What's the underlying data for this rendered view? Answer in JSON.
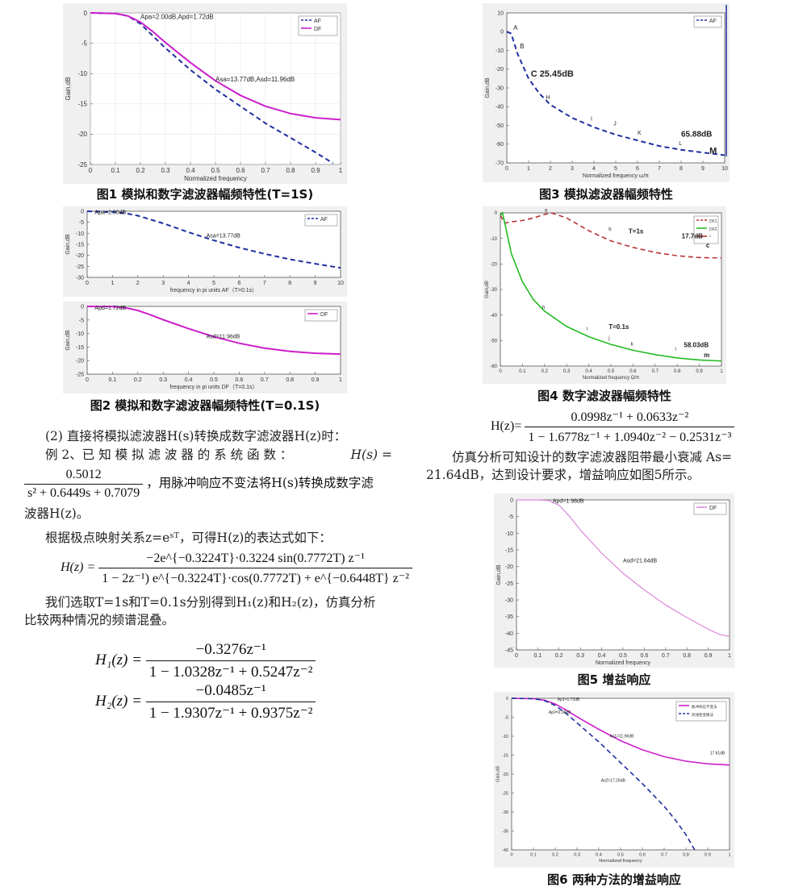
{
  "colors": {
    "af": "#1f2fa0",
    "df": "#cc1fcc",
    "plot_bg": "#f0f0f0",
    "frame": "#ffffff",
    "red": "#b83232",
    "green": "#22bb22",
    "light_pink": "#dd88dd"
  },
  "figures": {
    "fig1": {
      "caption": "图1 模拟和数字滤波器幅频特性(T=1S)",
      "chart_data": {
        "type": "line",
        "xlabel": "Normalized frequency",
        "ylabel": "Gain,dB",
        "xlim": [
          0,
          1
        ],
        "ylim": [
          -25,
          0
        ],
        "x_ticks": [
          "0",
          "0.1",
          "0.2",
          "0.3",
          "0.4",
          "0.5",
          "0.6",
          "0.7",
          "0.8",
          "0.9",
          "1"
        ],
        "y_ticks": [
          "0",
          "-5",
          "-10",
          "-15",
          "-20",
          "-25"
        ],
        "legend": [
          "AF",
          "DF"
        ],
        "legend_position": "top-right",
        "annotations": [
          "Apa=2.00dB,Apd=1.72dB",
          "Asa=13.77dB,Asd=11.96dB"
        ],
        "series": [
          {
            "name": "AF",
            "style": "dashed",
            "x": [
              0,
              0.1,
              0.15,
              0.2,
              0.25,
              0.3,
              0.4,
              0.5,
              0.6,
              0.7,
              0.8,
              0.9,
              0.97
            ],
            "y": [
              0,
              -0.1,
              -0.5,
              -1.8,
              -3.8,
              -5.8,
              -9.4,
              -12.6,
              -15.4,
              -18.2,
              -20.6,
              -23,
              -24.8
            ]
          },
          {
            "name": "DF",
            "style": "solid",
            "x": [
              0,
              0.1,
              0.15,
              0.2,
              0.25,
              0.3,
              0.4,
              0.5,
              0.6,
              0.7,
              0.8,
              0.9,
              1
            ],
            "y": [
              0,
              -0.1,
              -0.5,
              -1.5,
              -3.1,
              -4.9,
              -8.2,
              -11.2,
              -13.6,
              -15.4,
              -16.6,
              -17.3,
              -17.6
            ]
          }
        ]
      }
    },
    "fig2": {
      "caption": "图2 模拟和数字滤波器幅频特性(T=0.1S)",
      "top": {
        "chart_data": {
          "type": "line",
          "xlabel": "frequency in pi units        AF（T=0.1s）",
          "ylabel": "Gain,dB",
          "xlim": [
            0,
            10
          ],
          "ylim": [
            -30,
            0
          ],
          "x_ticks": [
            "0",
            "1",
            "2",
            "3",
            "4",
            "5",
            "6",
            "7",
            "8",
            "9",
            "10"
          ],
          "y_ticks": [
            "0",
            "-5",
            "-10",
            "-15",
            "-20",
            "-25",
            "-30"
          ],
          "legend": [
            "AF"
          ],
          "legend_position": "top-right",
          "annotations": [
            "Apa=2.00dB",
            "Asa=13.77dB"
          ],
          "series": [
            {
              "name": "AF",
              "style": "dashed",
              "x": [
                0,
                1,
                1.5,
                2,
                3,
                4,
                5,
                6,
                7,
                8,
                9,
                10
              ],
              "y": [
                0,
                -0.3,
                -0.9,
                -2,
                -5.5,
                -9.5,
                -13.2,
                -16.5,
                -19.3,
                -21.8,
                -23.8,
                -25.7
              ]
            }
          ]
        }
      },
      "bottom": {
        "chart_data": {
          "type": "line",
          "xlabel": "frequency in pi units        DF（T=0.1s）",
          "ylabel": "Gain,dB",
          "xlim": [
            0,
            1
          ],
          "ylim": [
            -25,
            0
          ],
          "x_ticks": [
            "0",
            "0.1",
            "0.2",
            "0.3",
            "0.4",
            "0.5",
            "0.6",
            "0.7",
            "0.8",
            "0.9",
            "1"
          ],
          "y_ticks": [
            "0",
            "-5",
            "-10",
            "-15",
            "-20",
            "-25"
          ],
          "legend": [
            "DF"
          ],
          "legend_position": "top-right",
          "annotations": [
            "Apd=1.72dB",
            "Asd=11.96dB"
          ],
          "series": [
            {
              "name": "DF",
              "style": "solid",
              "x": [
                0,
                0.1,
                0.15,
                0.2,
                0.25,
                0.3,
                0.4,
                0.5,
                0.6,
                0.7,
                0.8,
                0.9,
                1
              ],
              "y": [
                0,
                -0.1,
                -0.5,
                -1.5,
                -3.1,
                -4.9,
                -8.2,
                -11.2,
                -13.6,
                -15.4,
                -16.6,
                -17.3,
                -17.6
              ]
            }
          ]
        }
      }
    },
    "fig3": {
      "caption": "图3 模拟滤波器幅频特性",
      "chart_data": {
        "type": "line",
        "xlabel": "Normalized frequency ω/π",
        "ylabel": "Gain,dB",
        "xlim": [
          0,
          10
        ],
        "ylim": [
          -70,
          10
        ],
        "x_ticks": [
          "0",
          "1",
          "2",
          "3",
          "4",
          "5",
          "6",
          "7",
          "8",
          "9",
          "10"
        ],
        "y_ticks": [
          "10",
          "0",
          "-10",
          "-20",
          "-30",
          "-40",
          "-50",
          "-60",
          "-70"
        ],
        "legend": [
          "AF"
        ],
        "legend_position": "top-right",
        "annotations": [
          "A",
          "B",
          "C 25.45dB",
          "H",
          "I",
          "J",
          "K",
          "L",
          "65.88dB",
          "M"
        ],
        "series": [
          {
            "name": "AF",
            "style": "dashed",
            "x": [
              0,
              0.2,
              0.5,
              1,
              1.5,
              2,
              3,
              4,
              5,
              6,
              7,
              8,
              9,
              10
            ],
            "y": [
              0,
              -1,
              -12,
              -25,
              -33,
              -39,
              -46,
              -51,
              -55,
              -58,
              -61,
              -63,
              -64.5,
              -65.9
            ]
          }
        ]
      }
    },
    "fig4": {
      "caption": "图4 数字滤波器幅频特性",
      "chart_data": {
        "type": "line",
        "xlabel": "Normalized frequency Ω/π",
        "ylabel": "Gain,dB",
        "xlim": [
          0,
          1
        ],
        "ylim": [
          -60,
          0
        ],
        "x_ticks": [
          "0",
          "0.1",
          "0.2",
          "0.3",
          "0.4",
          "0.5",
          "0.6",
          "0.7",
          "0.8",
          "0.9",
          "1"
        ],
        "y_ticks": [
          "0",
          "-10",
          "-20",
          "-30",
          "-40",
          "-50",
          "-60"
        ],
        "legend": [
          "DF1",
          "DF2",
          "*"
        ],
        "legend_position": "top-right",
        "annotations": [
          "a",
          "b",
          "T=1s",
          "17.7dB",
          "c",
          "h",
          "i",
          "j",
          "k",
          "T=0.1s",
          "l",
          "58.03dB",
          "m"
        ],
        "series": [
          {
            "name": "DF1",
            "style": "dashed",
            "x": [
              0,
              0.02,
              0.05,
              0.1,
              0.15,
              0.2,
              0.23,
              0.3,
              0.4,
              0.5,
              0.6,
              0.7,
              0.8,
              0.9,
              1
            ],
            "y": [
              -1,
              -4,
              -3.5,
              -3,
              -2,
              -0.6,
              0,
              -2,
              -7,
              -11,
              -13.5,
              -15.5,
              -16.8,
              -17.5,
              -17.7
            ]
          },
          {
            "name": "DF2",
            "style": "solid",
            "x": [
              0,
              0.01,
              0.02,
              0.05,
              0.1,
              0.15,
              0.2,
              0.3,
              0.4,
              0.5,
              0.6,
              0.7,
              0.8,
              0.9,
              1
            ],
            "y": [
              -1,
              0,
              -4,
              -16,
              -27,
              -34,
              -38.5,
              -44.5,
              -48.5,
              -51.5,
              -53.8,
              -55.5,
              -56.8,
              -57.6,
              -58
            ]
          }
        ]
      }
    },
    "fig5": {
      "caption": "图5 增益响应",
      "chart_data": {
        "type": "line",
        "xlabel": "Normalized frequency",
        "ylabel": "Gain,dB",
        "xlim": [
          0,
          1
        ],
        "ylim": [
          -45,
          0
        ],
        "x_ticks": [
          "0",
          "0.1",
          "0.2",
          "0.3",
          "0.4",
          "0.5",
          "0.6",
          "0.7",
          "0.8",
          "0.9",
          "1"
        ],
        "y_ticks": [
          "0",
          "-5",
          "-10",
          "-15",
          "-20",
          "-25",
          "-30",
          "-35",
          "-40",
          "-45"
        ],
        "legend": [
          "DF"
        ],
        "legend_position": "top-right",
        "annotations": [
          "Apd=1.98dB",
          "Asd=21.64dB"
        ],
        "series": [
          {
            "name": "DF",
            "style": "solid",
            "x": [
              0,
              0.1,
              0.15,
              0.2,
              0.25,
              0.3,
              0.35,
              0.4,
              0.5,
              0.6,
              0.7,
              0.8,
              0.9,
              0.95,
              1
            ],
            "y": [
              0,
              0,
              -0.2,
              -1.6,
              -5,
              -9,
              -12.5,
              -16,
              -22,
              -27,
              -31.5,
              -35.3,
              -38.8,
              -40.3,
              -41
            ]
          }
        ]
      }
    },
    "fig6": {
      "caption": "图6 两种方法的增益响应",
      "chart_data": {
        "type": "line",
        "xlabel": "Normalized frequency",
        "ylabel": "Gain,dB",
        "xlim": [
          0,
          1
        ],
        "ylim": [
          -40,
          0
        ],
        "x_ticks": [
          "0",
          "0.1",
          "0.2",
          "0.3",
          "0.4",
          "0.5",
          "0.6",
          "0.7",
          "0.8",
          "0.9",
          "1"
        ],
        "y_ticks": [
          "0",
          "-5",
          "-10",
          "-15",
          "-20",
          "-25",
          "-30",
          "-35",
          "-40"
        ],
        "legend": [
          "脉冲响应不变法",
          "双线性变换法"
        ],
        "legend_position": "top-right",
        "annotations": [
          "Ap1=1.72dB",
          "Ap2=2.00dB",
          "As1=11.96dB",
          "As2=17.26dB",
          "17.61dB"
        ],
        "series": [
          {
            "name": "脉冲响应不变法",
            "style": "solid",
            "x": [
              0,
              0.1,
              0.15,
              0.2,
              0.25,
              0.3,
              0.4,
              0.5,
              0.6,
              0.7,
              0.8,
              0.9,
              1
            ],
            "y": [
              0,
              -0.1,
              -0.5,
              -1.5,
              -3.1,
              -4.9,
              -8.2,
              -11.2,
              -13.6,
              -15.4,
              -16.6,
              -17.3,
              -17.6
            ]
          },
          {
            "name": "双线性变换法",
            "style": "dashed",
            "x": [
              0,
              0.1,
              0.15,
              0.2,
              0.25,
              0.3,
              0.4,
              0.5,
              0.6,
              0.7,
              0.75,
              0.8,
              0.84
            ],
            "y": [
              0,
              -0.1,
              -0.6,
              -1.9,
              -4,
              -6.5,
              -11.5,
              -17,
              -22.5,
              -28.5,
              -32,
              -36,
              -40
            ]
          }
        ]
      }
    }
  },
  "text": {
    "p1": "(2) 直接将模拟滤波器H(s)转换成数字滤波器H(z)时：",
    "p2a": "例 2、已 知 模 拟 滤 波 器 的 系 统 函 数 ：",
    "p2_Hs": "H(s) =",
    "p2_num": "0.5012",
    "p2_den": "s² + 0.6449s + 0.7079",
    "p2_tail": "，用脉冲响应不变法将H(s)转换成数字滤",
    "p2_end": "波器H(z)。",
    "p3": "根据极点映射关系z=eˢᵀ，可得H(z)的表达式如下：",
    "eq1_lhs": "H(z) =",
    "eq1_num": "−2e^{−0.3224T}·0.3224 sin(0.7772T) z⁻¹",
    "eq1_den": "1 − 2z⁻¹) e^{−0.3224T}·cos(0.7772T) + e^{−0.6448T} z⁻²",
    "p4a": "我们选取T=1s和T=0.1s分别得到H₁(z)和H₂(z)，仿真分析",
    "p4b": "比较两种情况的频谱混叠。",
    "eq2_lhs": "H₁(z) =",
    "eq2_num": "−0.3276z⁻¹",
    "eq2_den": "1 − 1.0328z⁻¹ + 0.5247z⁻²",
    "eq3_lhs": "H₂(z) =",
    "eq3_num": "−0.0485z⁻¹",
    "eq3_den": "1 − 1.9307z⁻¹ + 0.9375z⁻²",
    "eq4_lhs": "H(z)=",
    "eq4_num": "0.0998z⁻¹ + 0.0633z⁻²",
    "eq4_den": "1 − 1.6778z⁻¹ + 1.0940z⁻² − 0.2531z⁻³",
    "p5a": "仿真分析可知设计的数字滤波器阻带最小衰减 As=",
    "p5b": "21.64dB，达到设计要求，增益响应如图5所示。"
  }
}
